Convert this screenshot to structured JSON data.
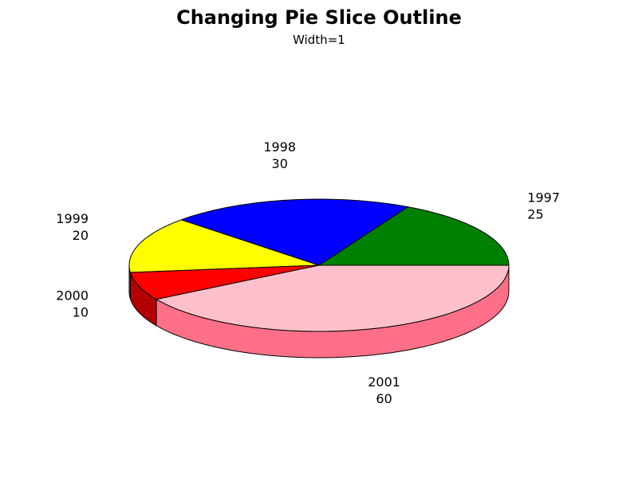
{
  "chart_data": {
    "type": "pie",
    "title": "Changing Pie Slice Outline",
    "subtitle": "Width=1",
    "slices": [
      {
        "label": "1997",
        "value": 25,
        "color": "#008000",
        "side_color": "#005a00"
      },
      {
        "label": "1998",
        "value": 30,
        "color": "#0000ff",
        "side_color": "#0000b3"
      },
      {
        "label": "1999",
        "value": 20,
        "color": "#ffff00",
        "side_color": "#b3b300"
      },
      {
        "label": "2000",
        "value": 10,
        "color": "#ff0000",
        "side_color": "#b30000"
      },
      {
        "label": "2001",
        "value": 60,
        "color": "#ffc0cb",
        "side_color": "#ff7088"
      }
    ],
    "outline_color": "#000000",
    "outline_width": 1,
    "style": "3d-tilted"
  }
}
